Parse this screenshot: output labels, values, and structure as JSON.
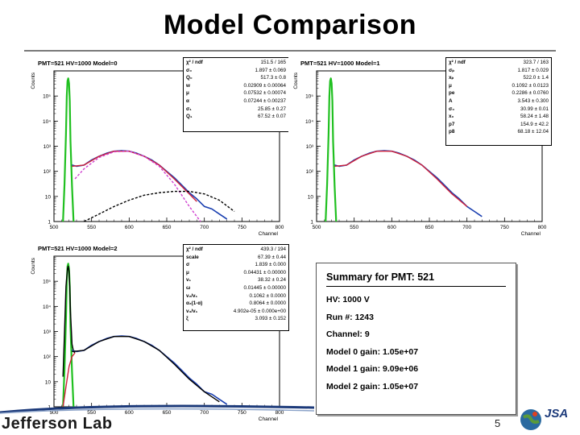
{
  "slide": {
    "title": "Model Comparison",
    "page_number": "5",
    "logo_text": "Jefferson Lab",
    "logo2_text": "JSA"
  },
  "colors": {
    "data": "#1a3fb0",
    "fit_red": "#d0203a",
    "green": "#20c020",
    "magenta": "#d040d0",
    "black": "#000000"
  },
  "chart_data": [
    {
      "type": "line",
      "title": "PMT=521 HV=1000 Model=0",
      "xlabel": "Channel",
      "ylabel": "Counts",
      "xlim": [
        500,
        800
      ],
      "ylog_decades": [
        0,
        6
      ],
      "xticks": [
        "500",
        "550",
        "600",
        "650",
        "700",
        "750",
        "800"
      ],
      "yticks": [
        "1",
        "10",
        "10²",
        "10³",
        "10⁴",
        "10⁵"
      ],
      "series": [
        {
          "name": "pedestal",
          "color": "#20c020",
          "x": [
            512,
            514,
            516,
            517,
            518,
            519,
            520,
            521,
            522,
            524,
            526
          ],
          "log_y": [
            0,
            1.5,
            3.5,
            5.0,
            5.6,
            5.7,
            5.5,
            4.8,
            3.2,
            1.4,
            0
          ]
        },
        {
          "name": "data",
          "color": "#1a3fb0",
          "x": [
            524,
            530,
            540,
            550,
            560,
            570,
            580,
            590,
            600,
            610,
            620,
            630,
            640,
            650,
            660,
            670,
            680,
            690,
            700,
            710,
            720,
            730
          ],
          "log_y": [
            2.25,
            2.2,
            2.25,
            2.45,
            2.6,
            2.72,
            2.8,
            2.82,
            2.8,
            2.72,
            2.6,
            2.45,
            2.25,
            2.0,
            1.75,
            1.45,
            1.15,
            0.9,
            0.6,
            0.5,
            0.3,
            0.1
          ]
        },
        {
          "name": "total fit",
          "color": "#d0203a",
          "x": [
            524,
            540,
            560,
            580,
            600,
            620,
            640,
            660,
            680,
            690
          ],
          "log_y": [
            2.2,
            2.25,
            2.6,
            2.8,
            2.8,
            2.6,
            2.25,
            1.7,
            1.1,
            0.8
          ]
        },
        {
          "name": "single pe",
          "color": "#d040d0",
          "x": [
            528,
            540,
            560,
            580,
            600,
            620,
            640,
            660,
            680,
            695
          ],
          "log_y": [
            1.7,
            2.1,
            2.55,
            2.78,
            2.8,
            2.6,
            2.2,
            1.5,
            0.6,
            0.0
          ]
        },
        {
          "name": "two pe",
          "color": "#000000",
          "x": [
            540,
            560,
            580,
            600,
            620,
            640,
            660,
            680,
            700,
            720,
            740
          ],
          "log_y": [
            0.0,
            0.3,
            0.6,
            0.85,
            1.05,
            1.15,
            1.2,
            1.2,
            1.1,
            0.85,
            0.4
          ]
        }
      ],
      "stats": [
        [
          "χ² / ndf",
          "151.5 / 165"
        ],
        [
          "σ₀",
          "1.897 ± 0.069"
        ],
        [
          "Q₀",
          "517.3 ± 0.8"
        ],
        [
          "w",
          "0.02909 ± 0.00064"
        ],
        [
          "μ",
          "0.07532 ± 0.00074"
        ],
        [
          "α",
          "0.07244 ± 0.00237"
        ],
        [
          "σ₁",
          "25.85 ± 0.27"
        ],
        [
          "Q₁",
          "67.52 ± 0.07"
        ]
      ]
    },
    {
      "type": "line",
      "title": "PMT=521 HV=1000 Model=1",
      "xlabel": "Channel",
      "ylabel": "Counts",
      "xlim": [
        500,
        800
      ],
      "ylog_decades": [
        0,
        6
      ],
      "xticks": [
        "500",
        "550",
        "600",
        "650",
        "700",
        "750",
        "800"
      ],
      "yticks": [
        "1",
        "10",
        "10²",
        "10³",
        "10⁴",
        "10⁵"
      ],
      "series": [
        {
          "name": "pedestal",
          "color": "#20c020",
          "x": [
            512,
            514,
            516,
            517,
            518,
            519,
            520,
            521,
            522,
            524,
            526
          ],
          "log_y": [
            0,
            1.5,
            3.5,
            5.0,
            5.6,
            5.7,
            5.5,
            4.8,
            3.2,
            1.4,
            0
          ]
        },
        {
          "name": "data",
          "color": "#1a3fb0",
          "x": [
            524,
            530,
            540,
            550,
            560,
            570,
            580,
            590,
            600,
            610,
            620,
            630,
            640,
            650,
            660,
            670,
            680,
            690,
            700,
            710,
            720
          ],
          "log_y": [
            2.25,
            2.2,
            2.25,
            2.45,
            2.6,
            2.72,
            2.8,
            2.82,
            2.8,
            2.72,
            2.6,
            2.45,
            2.25,
            2.0,
            1.75,
            1.45,
            1.15,
            0.9,
            0.6,
            0.4,
            0.2
          ]
        },
        {
          "name": "total fit",
          "color": "#d0203a",
          "x": [
            524,
            540,
            560,
            580,
            600,
            620,
            640,
            660,
            680,
            700
          ],
          "log_y": [
            2.2,
            2.25,
            2.6,
            2.8,
            2.8,
            2.6,
            2.25,
            1.7,
            1.1,
            0.6
          ]
        }
      ],
      "stats": [
        [
          "χ² / ndf",
          "323.7 / 163"
        ],
        [
          "σₚ",
          "1.817 ± 0.029"
        ],
        [
          "xₚ",
          "522.0 ± 1.4"
        ],
        [
          "μ",
          "0.1092 ± 0.0123"
        ],
        [
          "pe",
          "0.2286 ± 0.0760"
        ],
        [
          "A",
          "3.543 ± 0.300"
        ],
        [
          "σ₀",
          "30.99 ± 0.01"
        ],
        [
          "x₀",
          "58.24 ± 1.48"
        ],
        [
          "p7",
          "154.9 ± 42.2"
        ],
        [
          "p8",
          "68.18 ± 12.04"
        ]
      ]
    },
    {
      "type": "line",
      "title": "PMT=521 HV=1000 Model=2",
      "xlabel": "Channel",
      "ylabel": "Counts",
      "xlim": [
        500,
        800
      ],
      "ylog_decades": [
        0,
        6
      ],
      "xticks": [
        "500",
        "550",
        "600",
        "650",
        "700",
        "750",
        "800"
      ],
      "yticks": [
        "1",
        "10",
        "10²",
        "10³",
        "10⁴",
        "10⁵"
      ],
      "series": [
        {
          "name": "pedestal",
          "color": "#20c020",
          "x": [
            512,
            514,
            516,
            517,
            518,
            519,
            520,
            521,
            522,
            524,
            526
          ],
          "log_y": [
            0,
            1.5,
            3.5,
            5.0,
            5.6,
            5.7,
            5.5,
            4.8,
            3.2,
            1.4,
            0
          ]
        },
        {
          "name": "pedestal fit",
          "color": "#000000",
          "x": [
            512,
            514,
            516,
            518,
            519,
            520,
            521,
            522,
            524,
            526,
            528
          ],
          "log_y": [
            1.2,
            3.0,
            4.8,
            5.5,
            5.6,
            5.4,
            4.8,
            3.8,
            2.5,
            2.2,
            2.15
          ]
        },
        {
          "name": "data",
          "color": "#1a3fb0",
          "x": [
            524,
            530,
            540,
            550,
            560,
            570,
            580,
            590,
            600,
            610,
            620,
            630,
            640,
            650,
            660,
            670,
            680,
            690,
            700,
            710,
            720,
            730
          ],
          "log_y": [
            2.25,
            2.2,
            2.25,
            2.45,
            2.6,
            2.72,
            2.8,
            2.82,
            2.8,
            2.72,
            2.6,
            2.45,
            2.25,
            2.0,
            1.75,
            1.45,
            1.15,
            0.9,
            0.6,
            0.5,
            0.3,
            0.1
          ]
        },
        {
          "name": "total fit",
          "color": "#000000",
          "x": [
            524,
            540,
            560,
            580,
            600,
            620,
            640,
            660,
            680,
            700,
            720
          ],
          "log_y": [
            2.2,
            2.25,
            2.6,
            2.8,
            2.8,
            2.6,
            2.25,
            1.7,
            1.1,
            0.6,
            0.2
          ]
        },
        {
          "name": "background",
          "color": "#d0203a",
          "x": [
            512,
            516,
            520,
            524,
            528
          ],
          "log_y": [
            0,
            0.8,
            1.6,
            2.0,
            2.15
          ]
        }
      ],
      "stats": [
        [
          "χ² / ndf",
          "439.3 / 194"
        ],
        [
          "scale",
          "67.39 ± 0.44"
        ],
        [
          "σ",
          "1.839 ± 0.000"
        ],
        [
          "μ",
          "0.04431 ± 0.00000"
        ],
        [
          "v₁",
          "38.32 ± 0.24"
        ],
        [
          "ω",
          "0.01445 ± 0.00000"
        ],
        [
          "v₂/v₁",
          "0.1062 ± 0.0000"
        ],
        [
          "α₂(1-α)",
          "0.8064 ± 0.0000"
        ],
        [
          "v₃/v₁",
          "4.902e-05 ± 0.000e+00"
        ],
        [
          "ξ",
          "3.093 ± 0.152"
        ]
      ]
    }
  ],
  "summary": {
    "title": "Summary for PMT: 521",
    "lines": [
      "HV: 1000 V",
      "Run #: 1243",
      "Channel: 9",
      "Model 0 gain: 1.05e+07",
      "Model 1 gain: 9.09e+06",
      "Model 2 gain: 1.05e+07"
    ]
  }
}
